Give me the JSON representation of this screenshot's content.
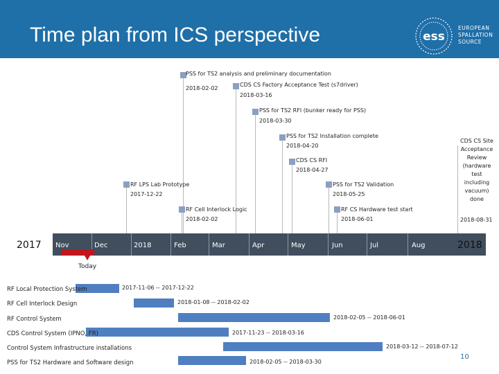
{
  "slide": {
    "title": "Time plan from ICS perspective",
    "page_number": "10",
    "header_color": "#1f6fa8"
  },
  "logo": {
    "mark_text": "ess",
    "lines": [
      "EUROPEAN",
      "SPALLATION",
      "SOURCE"
    ]
  },
  "timeline": {
    "start_year": "2017",
    "end_year": "2018",
    "bar_color": "#404e5e",
    "months": [
      "Nov",
      "Dec",
      "2018",
      "Feb",
      "Mar",
      "Apr",
      "May",
      "Jun",
      "Jul",
      "Aug"
    ],
    "today_label": "Today",
    "today_color": "#c0161c"
  },
  "milestones": [
    {
      "name": "PSS for TS2 analysis and preliminary documentation",
      "date": "2018-02-02"
    },
    {
      "name": "CDS CS Factory Acceptance Test (s7driver)",
      "date": "2018-03-16"
    },
    {
      "name": "PSS for TS2 RFI (bunker ready for PSS)",
      "date": "2018-03-30"
    },
    {
      "name": "PSS for TS2 Installation complete",
      "date": "2018-04-20"
    },
    {
      "name": "CDS CS RFI",
      "date": "2018-04-27"
    },
    {
      "name": "CDS CS Site Acceptance Review (hardware test including vacuum) done",
      "date": "2018-08-31"
    },
    {
      "name": "RF LPS Lab Prototype",
      "date": "2017-12-22"
    },
    {
      "name": "PSS for TS2 Validation",
      "date": "2018-05-25"
    },
    {
      "name": "RF Cell Interlock Logic",
      "date": "2018-02-02"
    },
    {
      "name": "RF CS Hardware test start",
      "date": "2018-06-01"
    }
  ],
  "tasks": [
    {
      "name": "RF Local Protection System",
      "range": "2017-11-06 -- 2017-12-22"
    },
    {
      "name": "RF Cell Interlock Design",
      "range": "2018-01-08 -- 2018-02-02"
    },
    {
      "name": "RF Control System",
      "range": "2018-02-05 -- 2018-06-01"
    },
    {
      "name": "CDS Control System (IPNO, FR)",
      "range": "2017-11-23 -- 2018-03-16"
    },
    {
      "name": "Control System Infrastructure installations",
      "range": "2018-03-12 -- 2018-07-12"
    },
    {
      "name": "PSS for TS2 Hardware and Software design",
      "range": "2018-02-05 -- 2018-03-30"
    }
  ],
  "colors": {
    "task_bar": "#4f7fc0",
    "milestone_marker": "#8aa0c0"
  }
}
